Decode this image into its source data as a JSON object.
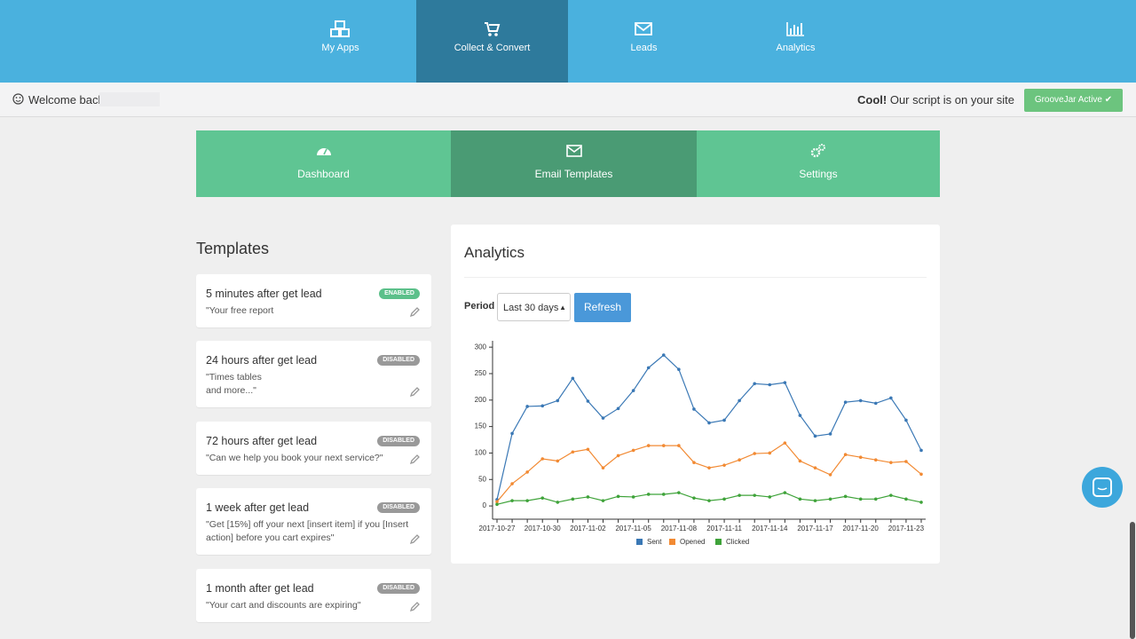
{
  "nav": {
    "items": [
      "My Apps",
      "Collect & Convert",
      "Leads",
      "Analytics"
    ]
  },
  "welcome": "Welcome back",
  "status": {
    "strong": "Cool!",
    "text": "Our script is on your site",
    "button": "GrooveJar Active"
  },
  "subnav": [
    "Dashboard",
    "Email Templates",
    "Settings"
  ],
  "templates": {
    "title": "Templates",
    "items": [
      {
        "title": "5 minutes after get lead",
        "status": "ENABLED",
        "description": "\"Your free report"
      },
      {
        "title": "24 hours after get lead",
        "status": "DISABLED",
        "description": "\"Times tables\nand more...\""
      },
      {
        "title": "72 hours after get lead",
        "status": "DISABLED",
        "description": "\"Can we help you book your next service?\""
      },
      {
        "title": "1 week after get lead",
        "status": "DISABLED",
        "description": "\"Get [15%] off your next [insert item] if you [Insert action] before you cart expires\""
      },
      {
        "title": "1 month after get lead",
        "status": "DISABLED",
        "description": "\"Your cart and discounts are expiring\""
      }
    ]
  },
  "analytics": {
    "title": "Analytics",
    "period_label": "Period",
    "period_value": "Last 30 days",
    "refresh": "Refresh"
  },
  "chart_data": {
    "type": "line",
    "x": [
      "2017-10-27",
      null,
      null,
      "2017-10-30",
      null,
      null,
      "2017-11-02",
      null,
      null,
      "2017-11-05",
      null,
      null,
      "2017-11-08",
      null,
      null,
      "2017-11-11",
      null,
      null,
      "2017-11-14",
      null,
      null,
      "2017-11-17",
      null,
      null,
      "2017-11-20",
      null,
      null,
      "2017-11-23",
      null
    ],
    "series": [
      {
        "name": "Sent",
        "color": "#3a78b5",
        "values": [
          12,
          137,
          188,
          189,
          199,
          241,
          198,
          166,
          184,
          218,
          261,
          285,
          258,
          183,
          157,
          162,
          199,
          231,
          229,
          233,
          171,
          132,
          136,
          196,
          199,
          194,
          204,
          162,
          105
        ]
      },
      {
        "name": "Opened",
        "color": "#f28a33",
        "values": [
          8,
          42,
          64,
          89,
          85,
          102,
          107,
          72,
          95,
          105,
          114,
          114,
          114,
          82,
          72,
          77,
          87,
          99,
          100,
          119,
          85,
          72,
          59,
          97,
          92,
          87,
          82,
          84,
          60
        ]
      },
      {
        "name": "Clicked",
        "color": "#3fa33a",
        "values": [
          3,
          10,
          10,
          15,
          7,
          13,
          17,
          10,
          18,
          17,
          22,
          22,
          25,
          15,
          10,
          13,
          20,
          20,
          17,
          25,
          13,
          10,
          13,
          18,
          13,
          13,
          20,
          13,
          7
        ]
      }
    ],
    "ylim": [
      -25,
      312
    ],
    "yticks": [
      0,
      50,
      100,
      150,
      200,
      250,
      300
    ],
    "legend": "bottom"
  }
}
